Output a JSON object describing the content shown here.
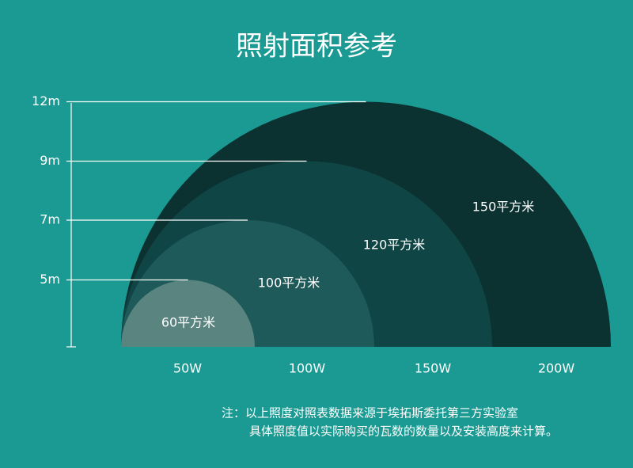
{
  "title": "照射面积参考",
  "levels": [
    {
      "height": "5m",
      "power": "50W",
      "area": "60平方米"
    },
    {
      "height": "7m",
      "power": "100W",
      "area": "100平方米"
    },
    {
      "height": "9m",
      "power": "150W",
      "area": "120平方米"
    },
    {
      "height": "12m",
      "power": "200W",
      "area": "150平方米"
    }
  ],
  "note": [
    "注：以上照度对照表数据来源于埃拓斯委托第三方实验室",
    "具体照度值以实际购买的瓦数的数量以及安装高度来计算。"
  ]
}
